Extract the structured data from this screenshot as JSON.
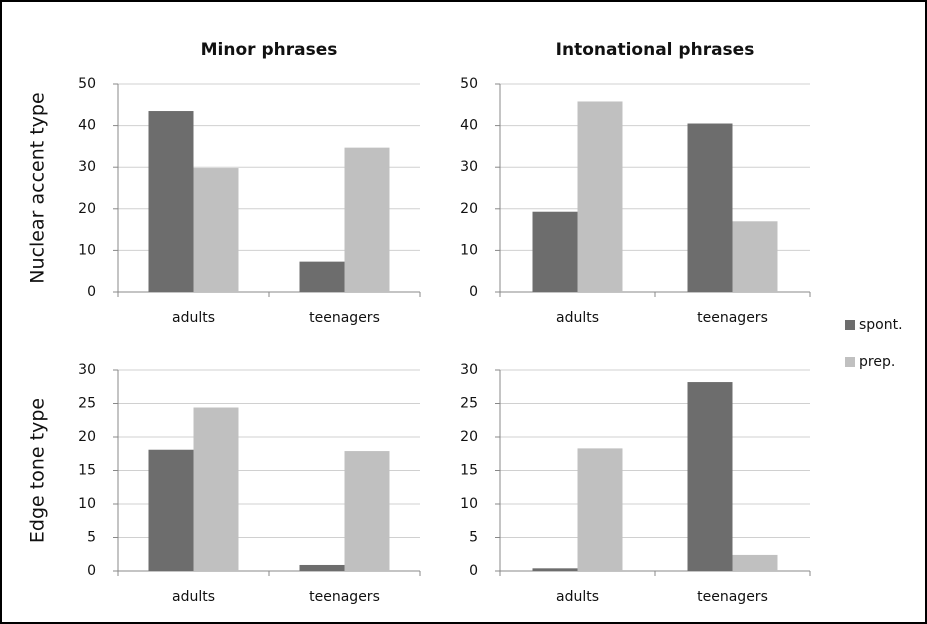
{
  "chart_data": [
    {
      "type": "bar",
      "title": "Minor phrases",
      "ylabel": "Nuclear accent type",
      "categories": [
        "adults",
        "teenagers"
      ],
      "series": [
        {
          "name": "spont.",
          "color": "#6d6d6d",
          "values": [
            43.5,
            7.3
          ]
        },
        {
          "name": "prep.",
          "color": "#c0c0c0",
          "values": [
            29.8,
            34.7
          ]
        }
      ],
      "ylim": [
        0,
        50
      ],
      "yticks": [
        0,
        10,
        20,
        30,
        40,
        50
      ],
      "grid": true
    },
    {
      "type": "bar",
      "title": "Intonational phrases",
      "categories": [
        "adults",
        "teenagers"
      ],
      "series": [
        {
          "name": "spont.",
          "color": "#6d6d6d",
          "values": [
            19.3,
            40.5
          ]
        },
        {
          "name": "prep.",
          "color": "#c0c0c0",
          "values": [
            45.8,
            17
          ]
        }
      ],
      "ylim": [
        0,
        50
      ],
      "yticks": [
        0,
        10,
        20,
        30,
        40,
        50
      ],
      "grid": true
    },
    {
      "type": "bar",
      "ylabel": "Edge tone type",
      "categories": [
        "adults",
        "teenagers"
      ],
      "series": [
        {
          "name": "spont.",
          "color": "#6d6d6d",
          "values": [
            18.1,
            0.9
          ]
        },
        {
          "name": "prep.",
          "color": "#c0c0c0",
          "values": [
            24.4,
            17.9
          ]
        }
      ],
      "ylim": [
        0,
        30
      ],
      "yticks": [
        0,
        5,
        10,
        15,
        20,
        25,
        30
      ],
      "grid": true
    },
    {
      "type": "bar",
      "categories": [
        "adults",
        "teenagers"
      ],
      "series": [
        {
          "name": "spont.",
          "color": "#6d6d6d",
          "values": [
            0.4,
            28.2
          ]
        },
        {
          "name": "prep.",
          "color": "#c0c0c0",
          "values": [
            18.3,
            2.4
          ]
        }
      ],
      "ylim": [
        0,
        30
      ],
      "yticks": [
        0,
        5,
        10,
        15,
        20,
        25,
        30
      ],
      "grid": true
    }
  ]
}
